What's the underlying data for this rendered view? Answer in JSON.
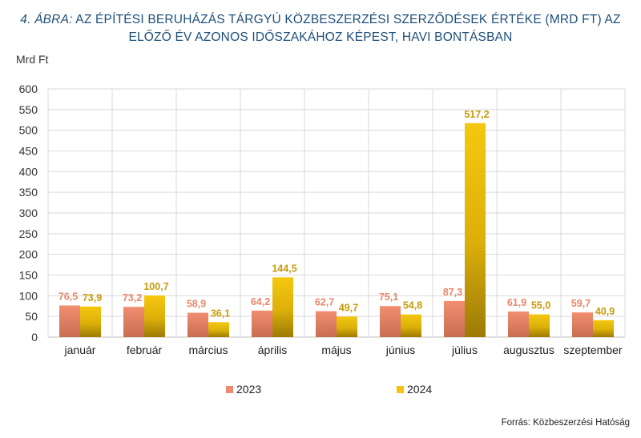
{
  "title_prefix": "4. ÁBRA:",
  "title_rest": " AZ ÉPÍTÉSI BERUHÁZÁS TÁRGYÚ KÖZBESZERZÉSI SZERZŐDÉSEK ÉRTÉKE (MRD FT) AZ ELŐZŐ ÉV AZONOS IDŐSZAKÁHOZ KÉPEST, HAVI BONTÁSBAN",
  "source": "Forrás: Közbeszerzési Hatóság",
  "colors": {
    "s2023": "#f08a6e",
    "s2024": "#f2c40d",
    "label2023": "#e9876b",
    "label2024": "#c89a0a",
    "grid": "#d9d9d9"
  },
  "chart_data": {
    "type": "bar",
    "title": "4. ÁBRA: AZ ÉPÍTÉSI BERUHÁZÁS TÁRGYÚ KÖZBESZERZÉSI SZERZŐDÉSEK ÉRTÉKE (MRD FT) AZ ELŐZŐ ÉV AZONOS IDŐSZAKÁHOZ KÉPEST, HAVI BONTÁSBAN",
    "ylabel": "Mrd Ft",
    "xlabel": "",
    "ylim": [
      0,
      600
    ],
    "yticks": [
      0,
      50,
      100,
      150,
      200,
      250,
      300,
      350,
      400,
      450,
      500,
      550,
      600
    ],
    "grid": true,
    "legend": "bottom",
    "categories": [
      "január",
      "február",
      "március",
      "április",
      "május",
      "június",
      "július",
      "augusztus",
      "szeptember"
    ],
    "series": [
      {
        "name": "2023",
        "values": [
          76.5,
          73.2,
          58.9,
          64.2,
          62.7,
          75.1,
          87.3,
          61.9,
          59.7
        ],
        "labels": [
          "76,5",
          "73,2",
          "58,9",
          "64,2",
          "62,7",
          "75,1",
          "87,3",
          "61,9",
          "59,7"
        ]
      },
      {
        "name": "2024",
        "values": [
          73.9,
          100.7,
          36.1,
          144.5,
          49.7,
          54.8,
          517.2,
          55.0,
          40.9
        ],
        "labels": [
          "73,9",
          "100,7",
          "36,1",
          "144,5",
          "49,7",
          "54,8",
          "517,2",
          "55,0",
          "40,9"
        ]
      }
    ]
  }
}
